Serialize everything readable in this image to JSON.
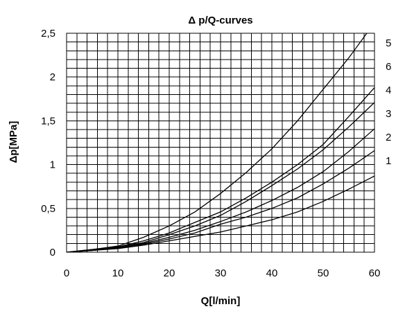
{
  "chart_data": {
    "type": "line",
    "title": "Δ p/Q-curves",
    "xlabel": "Q[l/min]",
    "ylabel": "Δp[MPa]",
    "xlim": [
      0,
      60
    ],
    "ylim": [
      0,
      2.5
    ],
    "x_ticks": [
      "0",
      "10",
      "20",
      "30",
      "40",
      "50",
      "60"
    ],
    "y_ticks": [
      "0",
      "0,5",
      "1",
      "1,5",
      "2",
      "2,5"
    ],
    "grid": true,
    "x": [
      0,
      5,
      10,
      15,
      20,
      25,
      30,
      35,
      40,
      45,
      50,
      55,
      60
    ],
    "series": [
      {
        "name": "5",
        "values": [
          0,
          0.03,
          0.07,
          0.17,
          0.3,
          0.46,
          0.67,
          0.91,
          1.18,
          1.5,
          1.86,
          2.22,
          2.62
        ]
      },
      {
        "name": "6",
        "values": [
          0,
          0.03,
          0.06,
          0.13,
          0.22,
          0.34,
          0.46,
          0.62,
          0.8,
          1.0,
          1.23,
          1.55,
          1.88
        ]
      },
      {
        "name": "4",
        "values": [
          0,
          0.03,
          0.06,
          0.11,
          0.2,
          0.3,
          0.42,
          0.58,
          0.76,
          0.95,
          1.17,
          1.43,
          1.71
        ]
      },
      {
        "name": "3",
        "values": [
          0,
          0.02,
          0.05,
          0.1,
          0.17,
          0.25,
          0.35,
          0.46,
          0.59,
          0.74,
          0.92,
          1.15,
          1.41
        ]
      },
      {
        "name": "2",
        "values": [
          0,
          0.02,
          0.05,
          0.09,
          0.15,
          0.22,
          0.32,
          0.4,
          0.5,
          0.62,
          0.78,
          0.96,
          1.16
        ]
      },
      {
        "name": "1",
        "values": [
          0,
          0.02,
          0.04,
          0.08,
          0.13,
          0.18,
          0.23,
          0.3,
          0.37,
          0.46,
          0.58,
          0.72,
          0.87
        ]
      }
    ]
  }
}
